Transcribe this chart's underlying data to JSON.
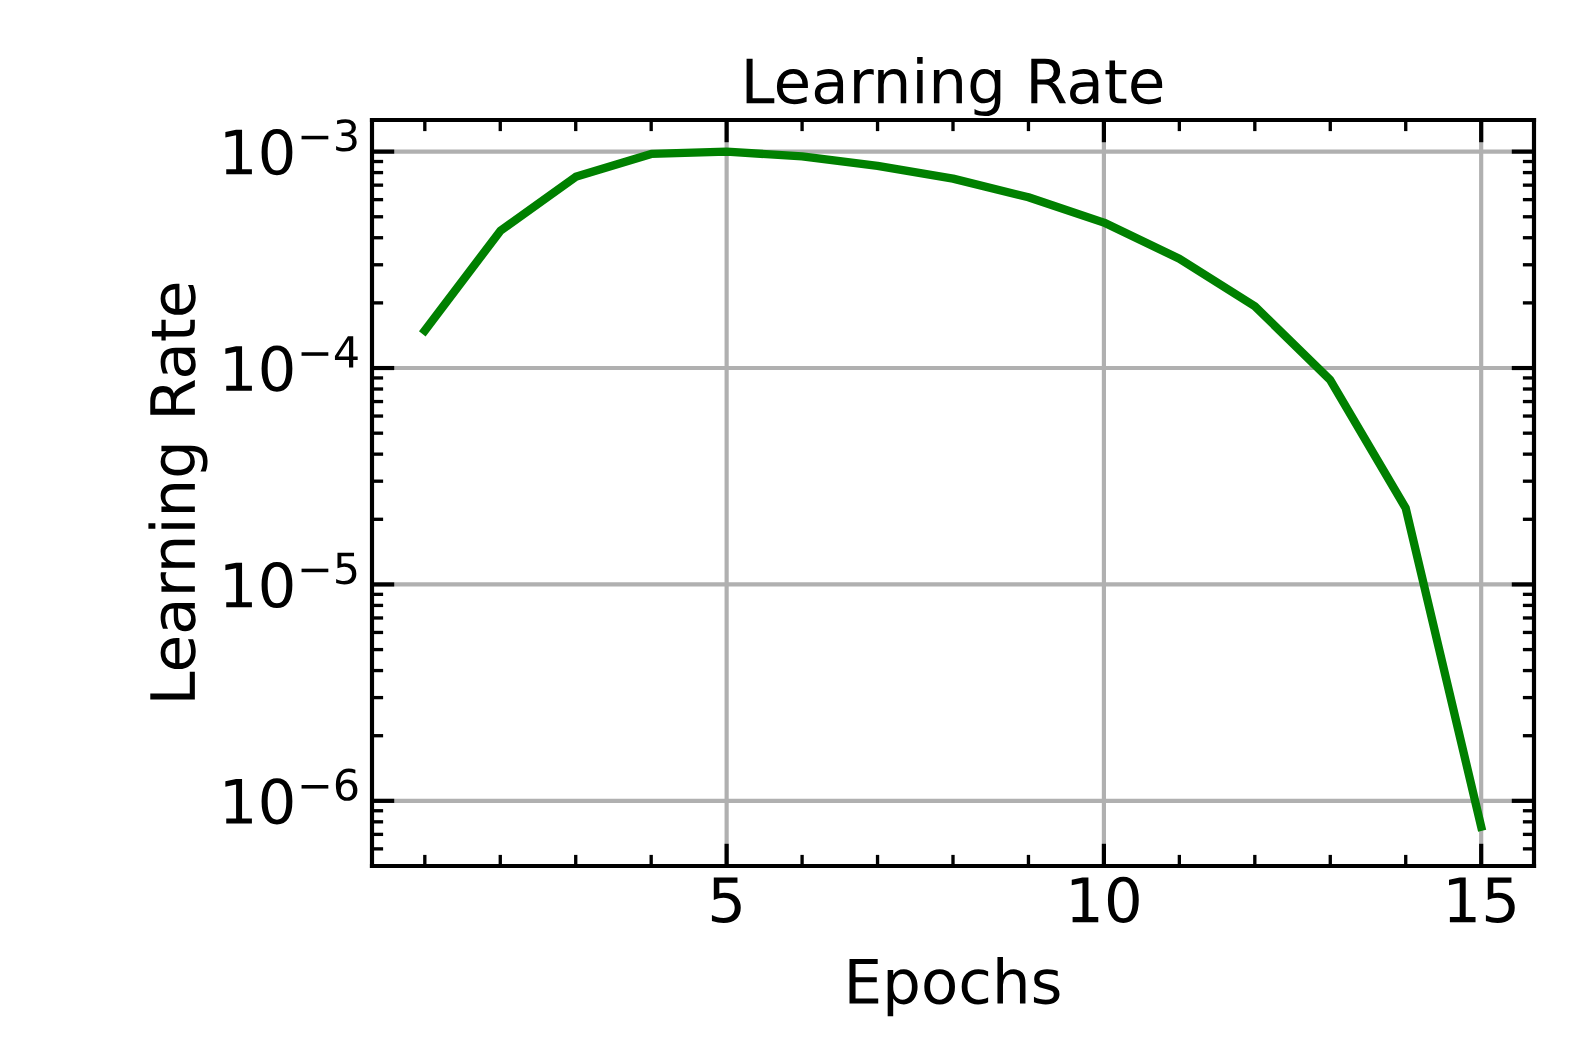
{
  "chart_data": {
    "type": "line",
    "title": "Learning Rate",
    "xlabel": "Epochs",
    "ylabel": "Learning Rate",
    "x": [
      1,
      2,
      3,
      4,
      5,
      6,
      7,
      8,
      9,
      10,
      11,
      12,
      13,
      14,
      15
    ],
    "series": [
      {
        "color": "#008000",
        "values": [
          0.000149,
          0.00043,
          0.000765,
          0.000976,
          0.001,
          0.00095,
          0.00086,
          0.00075,
          0.000615,
          0.00047,
          0.00032,
          0.000193,
          8.8e-05,
          2.25e-05,
          7.6e-07
        ]
      }
    ],
    "log": "y",
    "xlim": [
      0.3,
      15.7
    ],
    "xticks": [
      5,
      10,
      15
    ],
    "ylim": [
      5e-07,
      0.0014
    ],
    "yticks": [
      {
        "value": 1e-06,
        "label": "10$^{−6}$"
      },
      {
        "value": 1e-05,
        "label": "10$^{−5}$"
      },
      {
        "value": 0.0001,
        "label": "10$^{−4}$"
      },
      {
        "value": 0.001,
        "label": "10$^{−3}$"
      }
    ],
    "grid": true,
    "legend": false,
    "marker": "none",
    "line_style": "solid"
  }
}
